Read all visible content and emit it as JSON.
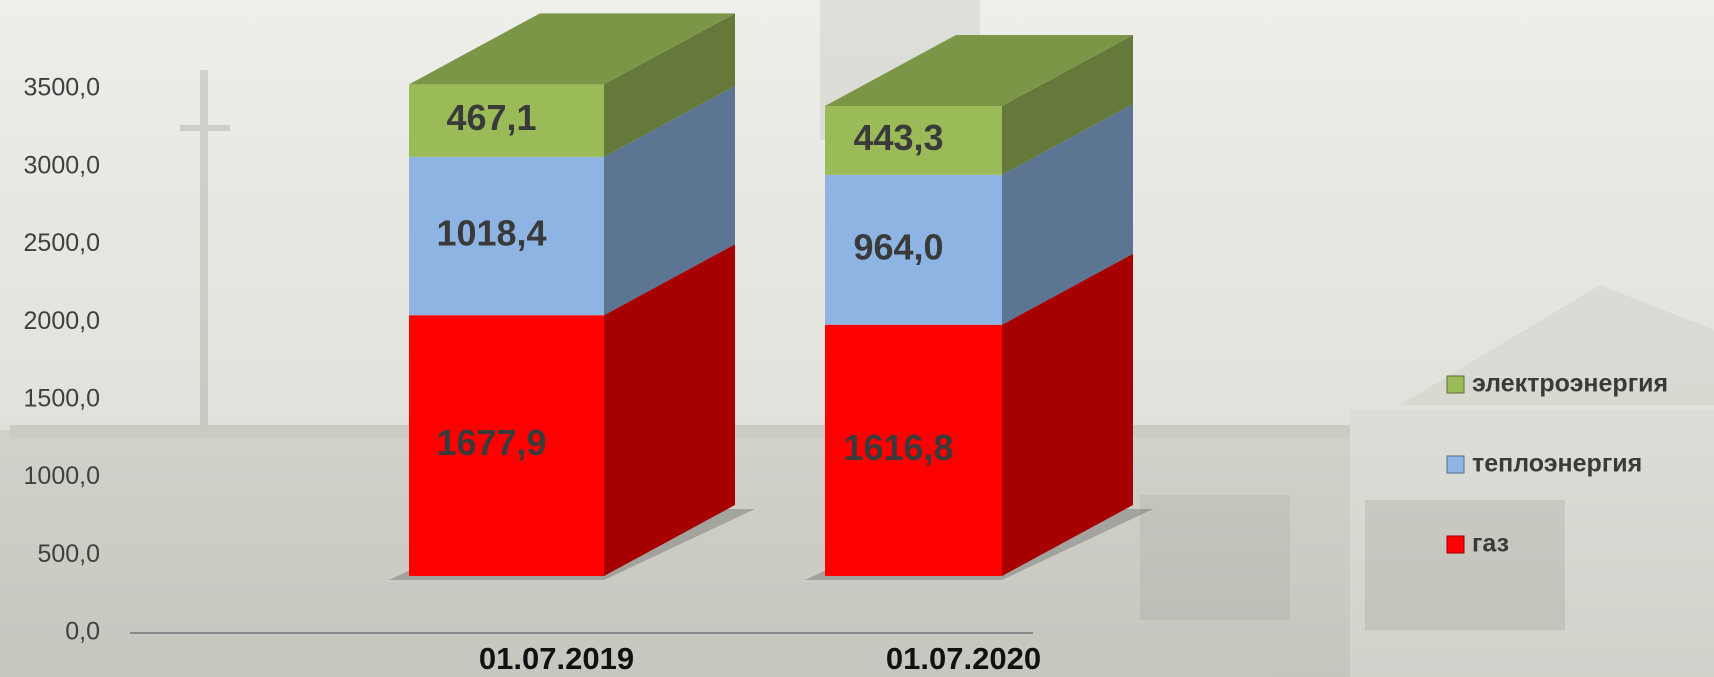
{
  "chart_data": {
    "type": "bar3d-stacked",
    "categories": [
      "01.07.2019",
      "01.07.2020"
    ],
    "series": [
      {
        "name": "газ",
        "color": "#ff0000",
        "values": [
          1677.9,
          1616.8
        ],
        "value_labels": [
          "1677,9",
          "1616,8"
        ]
      },
      {
        "name": "теплоэнергия",
        "color": "#8db4e2",
        "values": [
          1018.4,
          964.0
        ],
        "value_labels": [
          "1018,4",
          "964,0"
        ]
      },
      {
        "name": "электроэнергия",
        "color": "#9bbb59",
        "values": [
          467.1,
          443.3
        ],
        "value_labels": [
          "467,1",
          "443,3"
        ]
      }
    ],
    "ylim": [
      0,
      3500
    ],
    "yticks": [
      {
        "value": 0,
        "label": "0,0"
      },
      {
        "value": 500,
        "label": "500,0"
      },
      {
        "value": 1000,
        "label": "1000,0"
      },
      {
        "value": 1500,
        "label": "1500,0"
      },
      {
        "value": 2000,
        "label": "2000,0"
      },
      {
        "value": 2500,
        "label": "2500,0"
      },
      {
        "value": 3000,
        "label": "3000,0"
      },
      {
        "value": 3500,
        "label": "3500,0"
      }
    ],
    "legend": "right"
  }
}
